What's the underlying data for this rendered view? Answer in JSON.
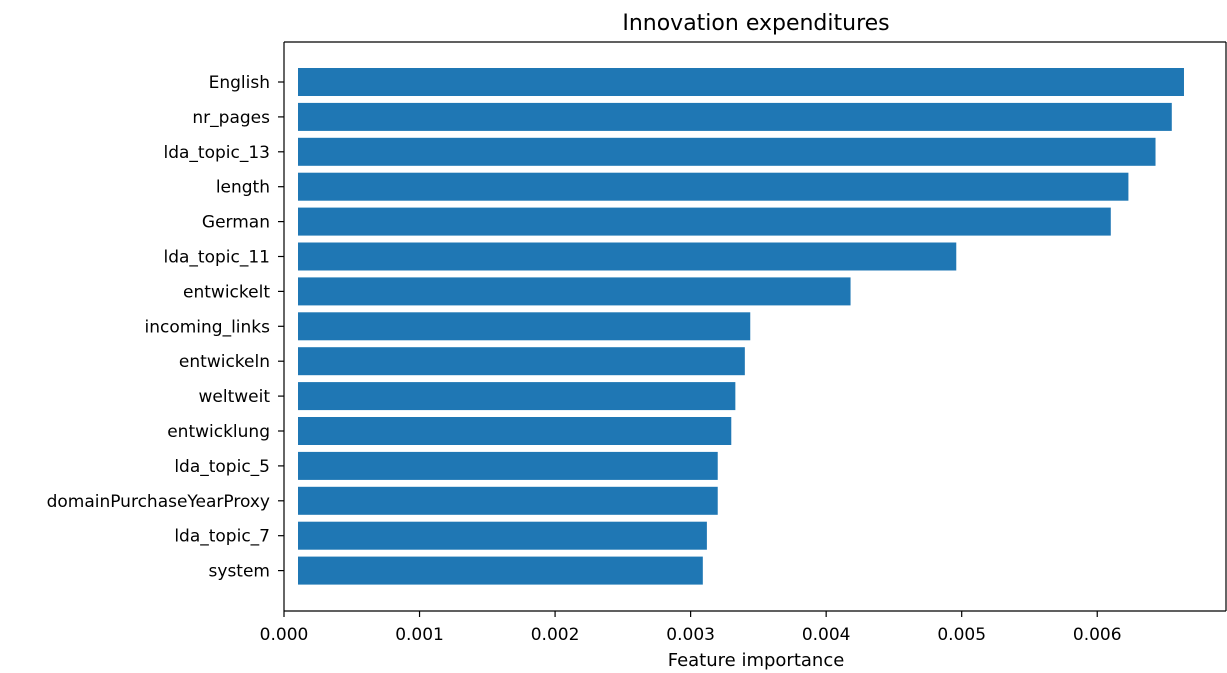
{
  "chart_data": {
    "type": "bar",
    "orientation": "horizontal",
    "title": "Innovation expenditures",
    "xlabel": "Feature importance",
    "ylabel": "",
    "xlim": [
      0,
      0.00695
    ],
    "xticks": [
      0,
      0.001,
      0.002,
      0.003,
      0.004,
      0.005,
      0.006
    ],
    "xtick_labels": [
      "0.000",
      "0.001",
      "0.002",
      "0.003",
      "0.004",
      "0.005",
      "0.006"
    ],
    "categories": [
      "English",
      "nr_pages",
      "lda_topic_13",
      "length",
      "German",
      "lda_topic_11",
      "entwickelt",
      "incoming_links",
      "entwickeln",
      "weltweit",
      "entwicklung",
      "lda_topic_5",
      "domainPurchaseYearProxy",
      "lda_topic_7",
      "system"
    ],
    "values": [
      0.00664,
      0.00655,
      0.00643,
      0.00623,
      0.0061,
      0.00496,
      0.00418,
      0.00344,
      0.0034,
      0.00333,
      0.0033,
      0.0032,
      0.0032,
      0.00312,
      0.00309
    ],
    "bar_color": "#1f77b4",
    "grid": false,
    "legend": "none"
  }
}
